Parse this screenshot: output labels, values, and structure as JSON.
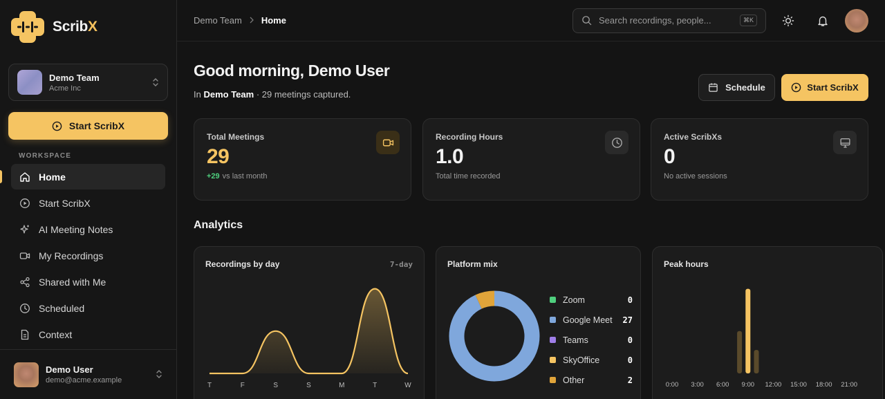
{
  "brand": {
    "name_main": "Scrib",
    "name_accent": "X"
  },
  "team": {
    "name": "Demo Team",
    "org": "Acme Inc"
  },
  "sidebar": {
    "start_label": "Start ScribX",
    "section_label": "WORKSPACE",
    "items": [
      {
        "label": "Home",
        "icon": "home-icon",
        "active": true
      },
      {
        "label": "Start ScribX",
        "icon": "play-circle-icon"
      },
      {
        "label": "AI Meeting Notes",
        "icon": "sparkle-icon"
      },
      {
        "label": "My Recordings",
        "icon": "video-icon"
      },
      {
        "label": "Shared with Me",
        "icon": "share-icon"
      },
      {
        "label": "Scheduled",
        "icon": "clock-icon"
      },
      {
        "label": "Context",
        "icon": "document-icon"
      }
    ]
  },
  "user": {
    "name": "Demo User",
    "email": "demo@acme.example"
  },
  "header": {
    "breadcrumb": [
      "Demo Team",
      "Home"
    ],
    "search_placeholder": "Search recordings, people...",
    "search_shortcut": "⌘K"
  },
  "page": {
    "greeting": "Good morning, Demo User",
    "sub_prefix": "In",
    "sub_team": "Demo Team",
    "sub_suffix": "· 29 meetings captured.",
    "schedule_label": "Schedule",
    "start_label": "Start ScribX"
  },
  "stats": [
    {
      "title": "Total Meetings",
      "value": "29",
      "delta": "+29",
      "sub": "vs last month",
      "icon": "video-icon"
    },
    {
      "title": "Recording Hours",
      "value": "1.0",
      "sub": "Total time recorded",
      "icon": "clock-icon"
    },
    {
      "title": "Active ScribXs",
      "value": "0",
      "sub": "No active sessions",
      "icon": "monitor-icon"
    }
  ],
  "analytics_title": "Analytics",
  "colors": {
    "accent": "#f5c462",
    "positive": "#4fcf7e"
  },
  "chart_data": [
    {
      "type": "area",
      "title": "Recordings by day",
      "range_label": "7-day",
      "categories": [
        "T",
        "F",
        "S",
        "S",
        "M",
        "T",
        "W"
      ],
      "values": [
        0,
        0,
        9,
        0,
        0,
        18,
        0
      ],
      "ylim": [
        0,
        20
      ],
      "grid": false,
      "color": "#f5c462"
    },
    {
      "type": "pie",
      "style": "donut",
      "title": "Platform mix",
      "categories": [
        "Zoom",
        "Google Meet",
        "Teams",
        "SkyOffice",
        "Other"
      ],
      "values": [
        0,
        27,
        0,
        0,
        2
      ],
      "colors": [
        "#4fcf7e",
        "#7fa7dc",
        "#9f7ee8",
        "#f5c462",
        "#e0a43a"
      ],
      "legend": "right"
    },
    {
      "type": "bar",
      "title": "Peak hours",
      "categories": [
        "0:00",
        "1:00",
        "2:00",
        "3:00",
        "4:00",
        "5:00",
        "6:00",
        "7:00",
        "8:00",
        "9:00",
        "10:00",
        "11:00",
        "12:00",
        "13:00",
        "14:00",
        "15:00",
        "16:00",
        "17:00",
        "18:00",
        "19:00",
        "20:00",
        "21:00",
        "22:00",
        "23:00"
      ],
      "tick_labels": [
        "0:00",
        "3:00",
        "6:00",
        "9:00",
        "12:00",
        "15:00",
        "18:00",
        "21:00"
      ],
      "values": [
        0,
        0,
        0,
        0,
        0,
        0,
        0,
        0,
        9,
        18,
        5,
        0,
        0,
        0,
        0,
        0,
        0,
        0,
        0,
        0,
        0,
        0,
        0,
        0
      ],
      "highlight_index": 9,
      "ylim": [
        0,
        20
      ],
      "grid": false
    }
  ]
}
